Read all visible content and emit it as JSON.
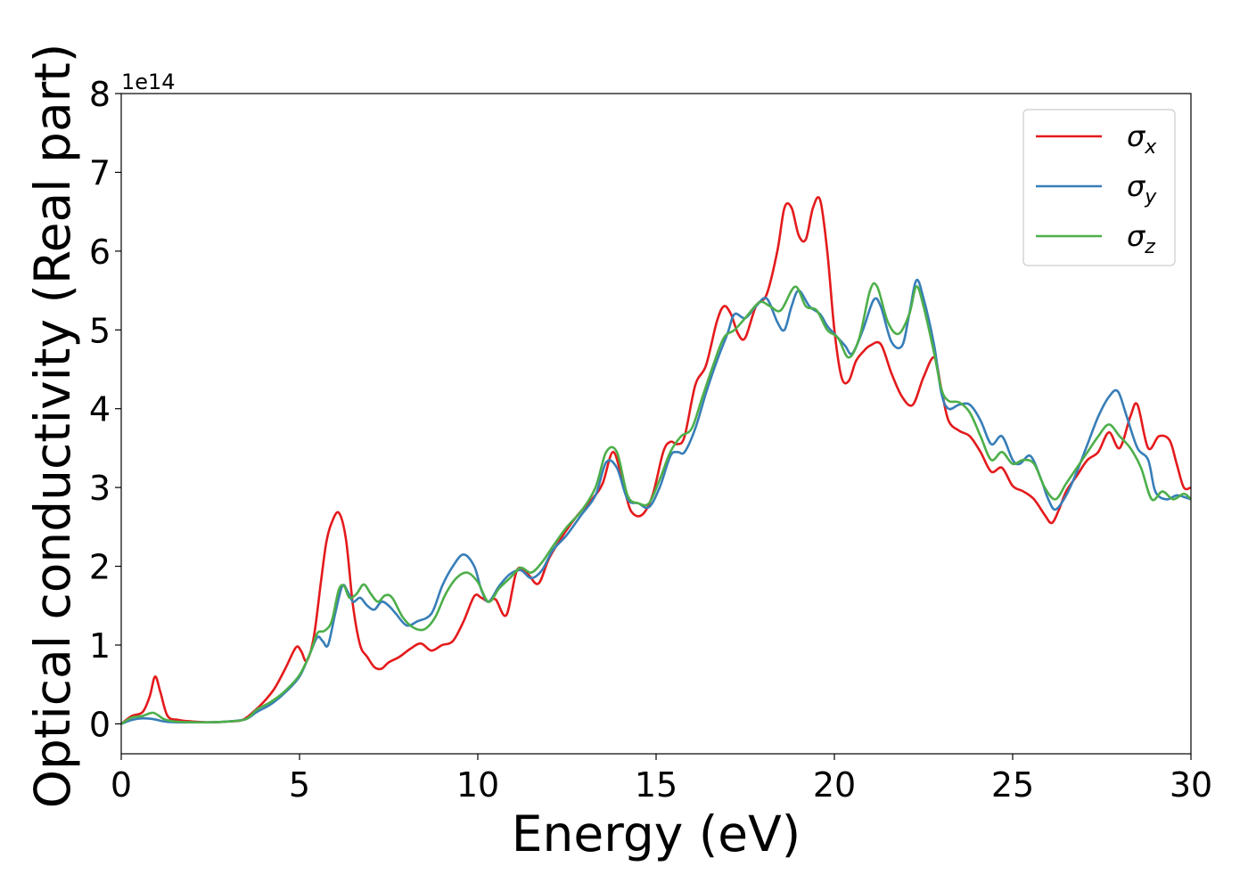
{
  "chart_data": {
    "type": "line",
    "xlabel": "Energy (eV)",
    "ylabel": "Optical conductivity (Real part)",
    "y_offset_label": "1e14",
    "xlim": [
      0,
      30
    ],
    "ylim": [
      -0.38,
      8.0
    ],
    "xticks": [
      0,
      5,
      10,
      15,
      20,
      25,
      30
    ],
    "yticks": [
      0,
      1,
      2,
      3,
      4,
      5,
      6,
      7,
      8
    ],
    "grid": false,
    "legend_position": "top-right",
    "series": [
      {
        "name": "σx",
        "label_main": "σ",
        "label_sub": "x",
        "color": "#e41a1c",
        "x": [
          0,
          0.3,
          0.6,
          0.8,
          0.95,
          1.1,
          1.3,
          1.6,
          2.0,
          2.5,
          3.0,
          3.4,
          3.7,
          4.0,
          4.3,
          4.6,
          4.9,
          5.05,
          5.2,
          5.4,
          5.6,
          5.75,
          5.9,
          6.1,
          6.3,
          6.5,
          6.7,
          6.9,
          7.1,
          7.3,
          7.5,
          7.8,
          8.1,
          8.4,
          8.7,
          9.0,
          9.3,
          9.6,
          9.9,
          10.1,
          10.3,
          10.5,
          10.8,
          11.1,
          11.4,
          11.7,
          12.0,
          12.4,
          12.8,
          13.2,
          13.5,
          13.8,
          14.1,
          14.3,
          14.6,
          14.9,
          15.2,
          15.4,
          15.6,
          15.8,
          16.1,
          16.4,
          16.7,
          16.9,
          17.1,
          17.3,
          17.5,
          17.8,
          18.1,
          18.4,
          18.6,
          18.8,
          19.0,
          19.2,
          19.4,
          19.6,
          19.8,
          20.0,
          20.2,
          20.4,
          20.6,
          20.8,
          21.0,
          21.3,
          21.6,
          21.9,
          22.2,
          22.5,
          22.8,
          23.0,
          23.2,
          23.5,
          23.8,
          24.1,
          24.4,
          24.7,
          25.0,
          25.3,
          25.6,
          25.9,
          26.1,
          26.3,
          26.5,
          26.8,
          27.1,
          27.4,
          27.7,
          28.0,
          28.3,
          28.5,
          28.8,
          29.1,
          29.4,
          29.6,
          29.8,
          30.0
        ],
        "values": [
          0.0,
          0.1,
          0.15,
          0.35,
          0.6,
          0.4,
          0.1,
          0.05,
          0.03,
          0.02,
          0.03,
          0.05,
          0.15,
          0.28,
          0.45,
          0.7,
          0.97,
          0.92,
          0.8,
          1.1,
          1.8,
          2.3,
          2.55,
          2.68,
          2.35,
          1.5,
          1.0,
          0.85,
          0.72,
          0.7,
          0.78,
          0.85,
          0.95,
          1.02,
          0.93,
          1.0,
          1.05,
          1.3,
          1.62,
          1.6,
          1.55,
          1.58,
          1.38,
          1.95,
          1.9,
          1.78,
          2.1,
          2.4,
          2.65,
          2.85,
          3.05,
          3.45,
          3.0,
          2.7,
          2.65,
          2.9,
          3.45,
          3.58,
          3.55,
          3.65,
          4.3,
          4.55,
          5.1,
          5.3,
          5.2,
          4.95,
          4.9,
          5.3,
          5.45,
          6.0,
          6.55,
          6.55,
          6.2,
          6.15,
          6.55,
          6.65,
          6.0,
          5.0,
          4.4,
          4.35,
          4.6,
          4.72,
          4.8,
          4.82,
          4.45,
          4.15,
          4.05,
          4.4,
          4.65,
          4.25,
          3.85,
          3.72,
          3.65,
          3.45,
          3.2,
          3.25,
          3.02,
          2.95,
          2.85,
          2.65,
          2.55,
          2.72,
          2.95,
          3.15,
          3.35,
          3.45,
          3.7,
          3.5,
          3.9,
          4.05,
          3.5,
          3.65,
          3.6,
          3.3,
          3.0,
          3.0
        ]
      },
      {
        "name": "σy",
        "label_main": "σ",
        "label_sub": "y",
        "color": "#377eb8",
        "x": [
          0,
          0.3,
          0.6,
          0.9,
          1.2,
          1.5,
          2.0,
          2.5,
          3.0,
          3.5,
          3.8,
          4.2,
          4.6,
          5.0,
          5.3,
          5.5,
          5.65,
          5.8,
          6.0,
          6.2,
          6.35,
          6.5,
          6.7,
          6.9,
          7.1,
          7.3,
          7.5,
          7.7,
          8.0,
          8.3,
          8.7,
          9.0,
          9.3,
          9.6,
          9.9,
          10.1,
          10.3,
          10.6,
          10.9,
          11.2,
          11.5,
          11.8,
          12.1,
          12.5,
          12.9,
          13.3,
          13.6,
          13.9,
          14.2,
          14.5,
          14.8,
          15.1,
          15.4,
          15.6,
          15.8,
          16.1,
          16.4,
          16.7,
          17.0,
          17.2,
          17.5,
          17.8,
          18.1,
          18.4,
          18.6,
          18.8,
          19.0,
          19.3,
          19.6,
          19.8,
          20.0,
          20.3,
          20.5,
          20.8,
          21.1,
          21.3,
          21.6,
          21.9,
          22.1,
          22.3,
          22.5,
          22.8,
          23.0,
          23.2,
          23.5,
          23.8,
          24.1,
          24.4,
          24.7,
          25.0,
          25.2,
          25.5,
          25.8,
          26.0,
          26.2,
          26.5,
          26.8,
          27.1,
          27.4,
          27.7,
          27.95,
          28.2,
          28.5,
          28.8,
          29.0,
          29.3,
          29.6,
          29.8,
          30.0
        ],
        "values": [
          0.0,
          0.05,
          0.07,
          0.06,
          0.03,
          0.02,
          0.02,
          0.02,
          0.03,
          0.06,
          0.15,
          0.25,
          0.4,
          0.6,
          0.9,
          1.1,
          1.05,
          1.0,
          1.4,
          1.75,
          1.68,
          1.55,
          1.6,
          1.5,
          1.45,
          1.55,
          1.5,
          1.4,
          1.25,
          1.3,
          1.4,
          1.75,
          2.0,
          2.15,
          2.0,
          1.7,
          1.55,
          1.75,
          1.9,
          1.95,
          1.85,
          1.95,
          2.2,
          2.4,
          2.65,
          2.9,
          3.32,
          3.25,
          2.85,
          2.8,
          2.75,
          3.0,
          3.4,
          3.45,
          3.45,
          3.75,
          4.2,
          4.6,
          4.95,
          5.2,
          5.15,
          5.3,
          5.4,
          5.1,
          5.0,
          5.3,
          5.5,
          5.3,
          5.2,
          5.05,
          4.95,
          4.8,
          4.7,
          5.0,
          5.38,
          5.3,
          4.85,
          4.8,
          5.2,
          5.63,
          5.4,
          4.8,
          4.2,
          4.0,
          4.05,
          4.05,
          3.85,
          3.55,
          3.65,
          3.35,
          3.3,
          3.4,
          3.1,
          2.85,
          2.72,
          2.9,
          3.2,
          3.55,
          3.9,
          4.15,
          4.22,
          3.9,
          3.5,
          3.35,
          2.95,
          2.85,
          2.9,
          2.88,
          2.85
        ]
      },
      {
        "name": "σz",
        "label_main": "σ",
        "label_sub": "z",
        "color": "#4daf4a",
        "x": [
          0,
          0.3,
          0.6,
          0.9,
          1.2,
          1.5,
          2.0,
          2.5,
          3.0,
          3.5,
          3.8,
          4.2,
          4.6,
          5.0,
          5.3,
          5.5,
          5.7,
          5.9,
          6.1,
          6.25,
          6.4,
          6.6,
          6.8,
          7.0,
          7.2,
          7.4,
          7.6,
          7.9,
          8.2,
          8.5,
          8.8,
          9.1,
          9.4,
          9.7,
          10.0,
          10.3,
          10.6,
          10.9,
          11.2,
          11.5,
          11.8,
          12.1,
          12.5,
          12.9,
          13.3,
          13.6,
          13.9,
          14.2,
          14.5,
          14.8,
          15.1,
          15.4,
          15.7,
          16.0,
          16.3,
          16.6,
          16.9,
          17.2,
          17.5,
          17.9,
          18.2,
          18.5,
          18.9,
          19.2,
          19.5,
          19.8,
          20.1,
          20.4,
          20.7,
          21.0,
          21.2,
          21.5,
          21.8,
          22.1,
          22.3,
          22.5,
          22.8,
          23.0,
          23.2,
          23.5,
          23.8,
          24.1,
          24.4,
          24.7,
          25.0,
          25.3,
          25.6,
          25.9,
          26.2,
          26.5,
          26.8,
          27.1,
          27.4,
          27.7,
          28.0,
          28.3,
          28.6,
          28.9,
          29.2,
          29.5,
          29.8,
          30.0
        ],
        "values": [
          0.0,
          0.08,
          0.1,
          0.14,
          0.06,
          0.03,
          0.02,
          0.02,
          0.03,
          0.06,
          0.18,
          0.28,
          0.42,
          0.62,
          0.9,
          1.15,
          1.18,
          1.3,
          1.7,
          1.75,
          1.6,
          1.65,
          1.77,
          1.65,
          1.55,
          1.63,
          1.6,
          1.35,
          1.22,
          1.2,
          1.35,
          1.65,
          1.85,
          1.92,
          1.8,
          1.55,
          1.72,
          1.85,
          1.98,
          1.92,
          2.05,
          2.25,
          2.5,
          2.7,
          3.0,
          3.45,
          3.45,
          2.9,
          2.8,
          2.8,
          3.1,
          3.45,
          3.65,
          3.75,
          4.15,
          4.55,
          4.9,
          5.0,
          5.15,
          5.35,
          5.3,
          5.25,
          5.55,
          5.3,
          5.25,
          5.0,
          4.9,
          4.65,
          4.9,
          5.5,
          5.55,
          5.1,
          4.95,
          5.2,
          5.55,
          5.3,
          4.7,
          4.25,
          4.1,
          4.08,
          3.95,
          3.65,
          3.35,
          3.45,
          3.3,
          3.35,
          3.3,
          3.0,
          2.85,
          3.05,
          3.25,
          3.45,
          3.65,
          3.8,
          3.65,
          3.5,
          3.25,
          2.85,
          2.95,
          2.85,
          2.92,
          2.85
        ]
      }
    ]
  }
}
